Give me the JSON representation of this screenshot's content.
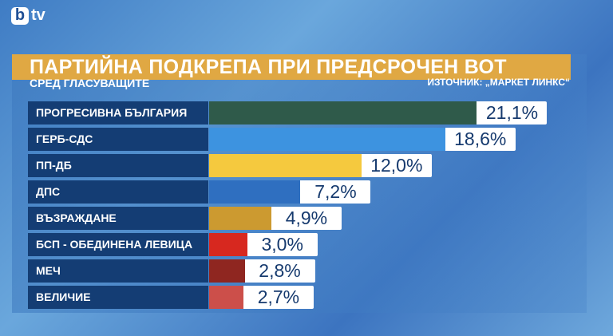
{
  "logo": {
    "b": "b",
    "tv": "tv"
  },
  "title": "ПАРТИЙНА ПОДКРЕПА ПРИ ПРЕДСРОЧЕН ВОТ",
  "subtitle": "СРЕД ГЛАСУВАЩИТЕ",
  "source": "ИЗТОЧНИК: „МАРКЕТ ЛИНКС“",
  "chart_data": {
    "type": "bar",
    "orientation": "horizontal",
    "title": "ПАРТИЙНА ПОДКРЕПА ПРИ ПРЕДСРОЧЕН ВОТ",
    "subtitle": "СРЕД ГЛАСУВАЩИТЕ",
    "categories": [
      "ПРОГРЕСИВНА БЪЛГАРИЯ",
      "ГЕРБ-СДС",
      "ПП-ДБ",
      "ДПС",
      "ВЪЗРАЖДАНЕ",
      "БСП - ОБЕДИНЕНА ЛЕВИЦА",
      "МЕЧ",
      "ВЕЛИЧИЕ"
    ],
    "values": [
      21.1,
      18.6,
      12.0,
      7.2,
      4.9,
      3.0,
      2.8,
      2.7
    ],
    "labels": [
      "21,1%",
      "18,6%",
      "12,0%",
      "7,2%",
      "4,9%",
      "3,0%",
      "2,8%",
      "2,7%"
    ],
    "colors": [
      "#2f5a4a",
      "#3d93e0",
      "#f5c93e",
      "#2f6fc0",
      "#cc9a30",
      "#d7281f",
      "#8f2620",
      "#cc4f4a"
    ],
    "grid": false,
    "legend": "none"
  }
}
